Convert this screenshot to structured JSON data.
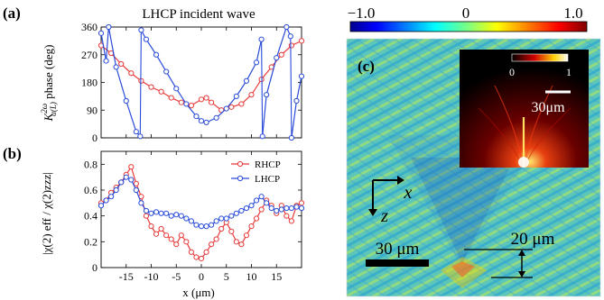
{
  "figure": {
    "panel_a_label": "(a)",
    "panel_b_label": "(b)",
    "panel_c_label": "(c)",
    "title": "LHCP incident wave",
    "ylabel_a_base": "K",
    "ylabel_a_sup": "2ω",
    "ylabel_a_sub": "α(L)",
    "ylabel_a_rest": " phase (deg)",
    "ylabel_b": "|χ(2) eff / χ(2)zzz|",
    "xlabel": "x (μm)",
    "colorbar_min": "−1.0",
    "colorbar_mid": "0",
    "colorbar_max": "1.0",
    "inset_min": "0",
    "inset_max": "1",
    "inset_scale": "30μm",
    "axis_x": "x",
    "axis_z": "z",
    "scale_30": "30 μm",
    "scale_20": "20 μm"
  },
  "chart_data": [
    {
      "type": "line",
      "panel": "a",
      "title": "LHCP incident wave",
      "xlim": [
        -20,
        20
      ],
      "ylim": [
        0,
        360
      ],
      "yticks": [
        0,
        90,
        180,
        270,
        360
      ],
      "xticks": [
        -15,
        -10,
        -5,
        0,
        5,
        10,
        15
      ],
      "series": [
        {
          "color": "#e83a3a",
          "x": [
            -20,
            -18,
            -16,
            -14,
            -12,
            -10,
            -8,
            -6,
            -4,
            -2,
            0,
            1,
            2,
            4,
            6,
            8,
            10,
            12,
            14,
            16,
            18,
            20
          ],
          "y": [
            300,
            275,
            240,
            210,
            185,
            165,
            150,
            130,
            115,
            105,
            125,
            130,
            115,
            90,
            100,
            110,
            140,
            190,
            230,
            270,
            300,
            315
          ]
        },
        {
          "color": "#2a4bd8",
          "x": [
            -20,
            -19,
            -18.5,
            -17,
            -15,
            -13,
            -12.2,
            -12,
            -11,
            -9,
            -7,
            -5,
            -3,
            -1,
            0,
            1,
            3,
            5,
            7,
            9,
            11,
            12,
            12.2,
            13,
            15,
            17,
            17.8,
            18,
            19,
            20
          ],
          "y": [
            340,
            250,
            360,
            230,
            120,
            20,
            5,
            350,
            320,
            270,
            215,
            160,
            110,
            70,
            55,
            50,
            65,
            95,
            135,
            185,
            245,
            320,
            5,
            140,
            260,
            360,
            330,
            0,
            120,
            200
          ]
        }
      ]
    },
    {
      "type": "line",
      "panel": "b",
      "xlabel": "x (μm)",
      "xlim": [
        -20,
        20
      ],
      "ylim": [
        0,
        0.9
      ],
      "yticks": [
        0,
        0.2,
        0.4,
        0.6,
        0.8
      ],
      "xticks": [
        -15,
        -10,
        -5,
        0,
        5,
        10,
        15
      ],
      "legend": "top-right",
      "series": [
        {
          "name": "RHCP",
          "color": "#e83a3a",
          "x": [
            -20,
            -19,
            -18,
            -17,
            -16,
            -15,
            -14,
            -13,
            -12,
            -11,
            -10,
            -9,
            -8,
            -7,
            -6,
            -5,
            -4,
            -3,
            -2,
            -1,
            0,
            1,
            2,
            3,
            4,
            5,
            6,
            7,
            8,
            9,
            10,
            11,
            12,
            13,
            14,
            15,
            16,
            17,
            18,
            19,
            20
          ],
          "y": [
            0.5,
            0.52,
            0.58,
            0.62,
            0.66,
            0.72,
            0.78,
            0.65,
            0.55,
            0.4,
            0.32,
            0.26,
            0.3,
            0.25,
            0.22,
            0.18,
            0.25,
            0.2,
            0.12,
            0.08,
            0.07,
            0.12,
            0.18,
            0.22,
            0.3,
            0.35,
            0.28,
            0.2,
            0.18,
            0.25,
            0.32,
            0.38,
            0.45,
            0.52,
            0.48,
            0.42,
            0.48,
            0.4,
            0.36,
            0.48,
            0.5
          ]
        },
        {
          "name": "LHCP",
          "color": "#2a4bd8",
          "x": [
            -20,
            -19,
            -18,
            -17,
            -16,
            -15,
            -14,
            -13,
            -12,
            -11,
            -10,
            -9,
            -8,
            -7,
            -6,
            -5,
            -4,
            -3,
            -2,
            -1,
            0,
            1,
            2,
            3,
            4,
            5,
            6,
            7,
            8,
            9,
            10,
            11,
            12,
            13,
            14,
            15,
            16,
            17,
            18,
            19,
            20
          ],
          "y": [
            0.48,
            0.52,
            0.55,
            0.6,
            0.66,
            0.7,
            0.68,
            0.6,
            0.5,
            0.44,
            0.42,
            0.43,
            0.42,
            0.42,
            0.4,
            0.41,
            0.4,
            0.38,
            0.36,
            0.33,
            0.32,
            0.32,
            0.33,
            0.36,
            0.38,
            0.38,
            0.4,
            0.42,
            0.44,
            0.46,
            0.48,
            0.52,
            0.55,
            0.5,
            0.46,
            0.44,
            0.45,
            0.46,
            0.46,
            0.47,
            0.46
          ]
        }
      ]
    }
  ]
}
